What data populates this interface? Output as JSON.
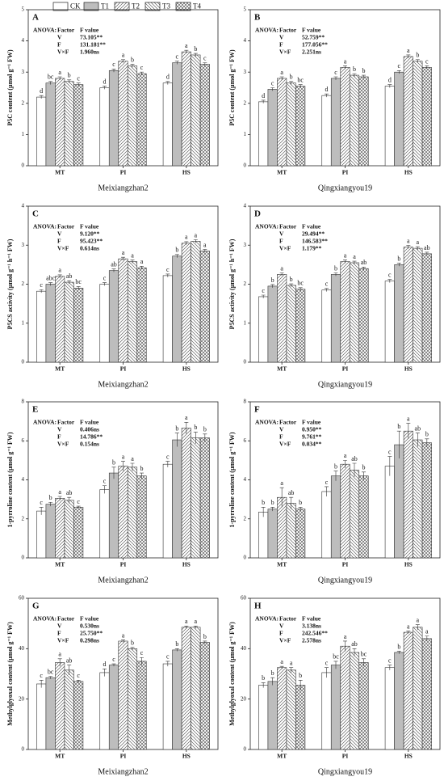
{
  "legend": [
    {
      "name": "CK",
      "fill": "#ffffff",
      "pattern": "none"
    },
    {
      "name": "T1",
      "fill": "#bdbdbd",
      "pattern": "none"
    },
    {
      "name": "T2",
      "fill": "#ffffff",
      "pattern": "diag"
    },
    {
      "name": "T3",
      "fill": "#ffffff",
      "pattern": "back"
    },
    {
      "name": "T4",
      "fill": "#ffffff",
      "pattern": "cross"
    }
  ],
  "chart_data": [
    {
      "type": "bar",
      "panel": "A",
      "ylabel": "P5C content (μmol g⁻¹ FW)",
      "xlabel": "Meixiangzhan2",
      "categories": [
        "MT",
        "PI",
        "HS"
      ],
      "ylim": [
        0,
        5
      ],
      "yticks": [
        0,
        1,
        2,
        3,
        4,
        5
      ],
      "anova": {
        "header": [
          "ANOVA:",
          "Factor",
          "F value"
        ],
        "rows": [
          [
            "V",
            "73.105**"
          ],
          [
            "F",
            "131.181**"
          ],
          [
            "V×F",
            "1.960ns"
          ]
        ]
      },
      "series": [
        {
          "values": [
            2.2,
            2.5,
            2.65
          ],
          "errors": [
            0.05,
            0.05,
            0.05
          ],
          "letters": [
            "d",
            "d",
            "d"
          ]
        },
        {
          "values": [
            2.65,
            3.05,
            3.3
          ],
          "errors": [
            0.05,
            0.05,
            0.05
          ],
          "letters": [
            "bc",
            "c",
            "c"
          ]
        },
        {
          "values": [
            2.8,
            3.35,
            3.65
          ],
          "errors": [
            0.05,
            0.05,
            0.05
          ],
          "letters": [
            "a",
            "a",
            "a"
          ]
        },
        {
          "values": [
            2.7,
            3.2,
            3.55
          ],
          "errors": [
            0.05,
            0.05,
            0.05
          ],
          "letters": [
            "b",
            "b",
            "b"
          ]
        },
        {
          "values": [
            2.6,
            2.95,
            3.25
          ],
          "errors": [
            0.05,
            0.05,
            0.05
          ],
          "letters": [
            "c",
            "c",
            "c"
          ]
        }
      ]
    },
    {
      "type": "bar",
      "panel": "B",
      "ylabel": "P5C content (μmol g⁻¹ FW)",
      "xlabel": "Qingxiangyou19",
      "categories": [
        "MT",
        "PI",
        "HS"
      ],
      "ylim": [
        0,
        5
      ],
      "yticks": [
        0,
        1,
        2,
        3,
        4,
        5
      ],
      "anova": {
        "header": [
          "ANOVA:",
          "Factor",
          "F value"
        ],
        "rows": [
          [
            "V",
            "52.759**"
          ],
          [
            "F",
            "177.056**"
          ],
          [
            "V×F",
            "2.251ns"
          ]
        ]
      },
      "series": [
        {
          "values": [
            2.05,
            2.25,
            2.55
          ],
          "errors": [
            0.05,
            0.05,
            0.05
          ],
          "letters": [
            "d",
            "d",
            "d"
          ]
        },
        {
          "values": [
            2.45,
            2.8,
            3.0
          ],
          "errors": [
            0.05,
            0.05,
            0.05
          ],
          "letters": [
            "c",
            "c",
            "c"
          ]
        },
        {
          "values": [
            2.8,
            3.15,
            3.5
          ],
          "errors": [
            0.05,
            0.05,
            0.05
          ],
          "letters": [
            "a",
            "a",
            "a"
          ]
        },
        {
          "values": [
            2.65,
            2.9,
            3.35
          ],
          "errors": [
            0.05,
            0.05,
            0.05
          ],
          "letters": [
            "b",
            "b",
            "b"
          ]
        },
        {
          "values": [
            2.55,
            2.85,
            3.15
          ],
          "errors": [
            0.05,
            0.05,
            0.05
          ],
          "letters": [
            "bc",
            "b",
            "c"
          ]
        }
      ]
    },
    {
      "type": "bar",
      "panel": "C",
      "ylabel": "P5CS activity (μmol g⁻¹ h⁻¹ FW)",
      "xlabel": "Meixiangzhan2",
      "categories": [
        "MT",
        "PI",
        "HS"
      ],
      "ylim": [
        0,
        4
      ],
      "yticks": [
        0,
        1,
        2,
        3,
        4
      ],
      "anova": {
        "header": [
          "ANOVA:",
          "Factor",
          "F value"
        ],
        "rows": [
          [
            "V",
            "9.120**"
          ],
          [
            "F",
            "95.423**"
          ],
          [
            "V×F",
            "0.614ns"
          ]
        ]
      },
      "series": [
        {
          "values": [
            1.82,
            2.0,
            2.22
          ],
          "errors": [
            0.04,
            0.04,
            0.04
          ],
          "letters": [
            "c",
            "c",
            "c"
          ]
        },
        {
          "values": [
            2.0,
            2.35,
            2.72
          ],
          "errors": [
            0.04,
            0.04,
            0.04
          ],
          "letters": [
            "abc",
            "ab",
            "b"
          ]
        },
        {
          "values": [
            2.2,
            2.65,
            3.05
          ],
          "errors": [
            0.04,
            0.04,
            0.04
          ],
          "letters": [
            "a",
            "a",
            "a"
          ]
        },
        {
          "values": [
            2.05,
            2.58,
            3.1
          ],
          "errors": [
            0.04,
            0.04,
            0.04
          ],
          "letters": [
            "ab",
            "a",
            "a"
          ]
        },
        {
          "values": [
            1.9,
            2.42,
            2.85
          ],
          "errors": [
            0.04,
            0.04,
            0.04
          ],
          "letters": [
            "bc",
            "a",
            "a"
          ]
        }
      ]
    },
    {
      "type": "bar",
      "panel": "D",
      "ylabel": "P5CS activity (μmol g⁻¹ h⁻¹ FW)",
      "xlabel": "Qingxiangyou19",
      "categories": [
        "MT",
        "PI",
        "HS"
      ],
      "ylim": [
        0,
        4
      ],
      "yticks": [
        0,
        1,
        2,
        3,
        4
      ],
      "anova": {
        "header": [
          "ANOVA:",
          "Factor",
          "F value"
        ],
        "rows": [
          [
            "V",
            "29.494**"
          ],
          [
            "F",
            "146.583**"
          ],
          [
            "V×F",
            "1.179**"
          ]
        ]
      },
      "series": [
        {
          "values": [
            1.68,
            1.85,
            2.08
          ],
          "errors": [
            0.04,
            0.04,
            0.04
          ],
          "letters": [
            "c",
            "c",
            "c"
          ]
        },
        {
          "values": [
            1.95,
            2.25,
            2.5
          ],
          "errors": [
            0.04,
            0.04,
            0.04
          ],
          "letters": [
            "b",
            "b",
            "b"
          ]
        },
        {
          "values": [
            2.25,
            2.58,
            2.95
          ],
          "errors": [
            0.04,
            0.04,
            0.04
          ],
          "letters": [
            "a",
            "a",
            "a"
          ]
        },
        {
          "values": [
            1.97,
            2.55,
            2.92
          ],
          "errors": [
            0.04,
            0.04,
            0.04
          ],
          "letters": [
            "b",
            "a",
            "a"
          ]
        },
        {
          "values": [
            1.87,
            2.4,
            2.78
          ],
          "errors": [
            0.04,
            0.04,
            0.04
          ],
          "letters": [
            "bc",
            "ab",
            "ab"
          ]
        }
      ]
    },
    {
      "type": "bar",
      "panel": "E",
      "ylabel": "1-pyrroline content (μmol g⁻¹ FW)",
      "xlabel": "Meixiangzhan2",
      "categories": [
        "MT",
        "PI",
        "HS"
      ],
      "ylim": [
        0,
        8
      ],
      "yticks": [
        0,
        2,
        4,
        6,
        8
      ],
      "anova": {
        "header": [
          "ANOVA:",
          "Factor",
          "F value"
        ],
        "rows": [
          [
            "V",
            "0.406ns"
          ],
          [
            "F",
            "14.786**"
          ],
          [
            "V×F",
            "0.154ns"
          ]
        ]
      },
      "series": [
        {
          "values": [
            2.4,
            3.5,
            4.8
          ],
          "errors": [
            0.2,
            0.2,
            0.15
          ],
          "letters": [
            "c",
            "c",
            "c"
          ]
        },
        {
          "values": [
            2.75,
            4.35,
            6.05
          ],
          "errors": [
            0.1,
            0.3,
            0.35
          ],
          "letters": [
            "b",
            "b",
            "b"
          ]
        },
        {
          "values": [
            3.05,
            4.7,
            6.65
          ],
          "errors": [
            0.1,
            0.25,
            0.3
          ],
          "letters": [
            "a",
            "a",
            "a"
          ]
        },
        {
          "values": [
            2.95,
            4.65,
            6.15
          ],
          "errors": [
            0.15,
            0.2,
            0.3
          ],
          "letters": [
            "ab",
            "a",
            "b"
          ]
        },
        {
          "values": [
            2.6,
            4.2,
            6.15
          ],
          "errors": [
            0.05,
            0.15,
            0.2
          ],
          "letters": [
            "c",
            "b",
            "b"
          ]
        }
      ]
    },
    {
      "type": "bar",
      "panel": "F",
      "ylabel": "1-pyrroline content (μmol g⁻¹ FW)",
      "xlabel": "Qingxiangyou19",
      "categories": [
        "MT",
        "PI",
        "HS"
      ],
      "ylim": [
        0,
        8
      ],
      "yticks": [
        0,
        2,
        4,
        6,
        8
      ],
      "anova": {
        "header": [
          "ANOVA:",
          "Factor",
          "F value"
        ],
        "rows": [
          [
            "V",
            "0.950**"
          ],
          [
            "F",
            "9.761**"
          ],
          [
            "V×F",
            "0.034**"
          ]
        ]
      },
      "series": [
        {
          "values": [
            2.35,
            3.4,
            4.7
          ],
          "errors": [
            0.25,
            0.25,
            0.5
          ],
          "letters": [
            "b",
            "c",
            "c"
          ]
        },
        {
          "values": [
            2.5,
            4.2,
            5.8
          ],
          "errors": [
            0.1,
            0.25,
            0.7
          ],
          "letters": [
            "b",
            "b",
            "b"
          ]
        },
        {
          "values": [
            3.1,
            4.8,
            6.5
          ],
          "errors": [
            0.5,
            0.2,
            0.4
          ],
          "letters": [
            "a",
            "a",
            "a"
          ]
        },
        {
          "values": [
            2.8,
            4.5,
            6.05
          ],
          "errors": [
            0.3,
            0.35,
            0.35
          ],
          "letters": [
            "ab",
            "ab",
            "ab"
          ]
        },
        {
          "values": [
            2.5,
            4.2,
            5.9
          ],
          "errors": [
            0.1,
            0.2,
            0.2
          ],
          "letters": [
            "b",
            "b",
            "b"
          ]
        }
      ]
    },
    {
      "type": "bar",
      "panel": "G",
      "ylabel": "Methylglyoxal content (μmol g⁻¹ FW)",
      "xlabel": "Meixiangzhan2",
      "categories": [
        "MT",
        "PI",
        "HS"
      ],
      "ylim": [
        0,
        60
      ],
      "yticks": [
        0,
        20,
        40,
        60
      ],
      "anova": {
        "header": [
          "ANOVA:",
          "Factor",
          "F value"
        ],
        "rows": [
          [
            "V",
            "0.530ns"
          ],
          [
            "F",
            "25.750**"
          ],
          [
            "V×F",
            "0.298ns"
          ]
        ]
      },
      "series": [
        {
          "values": [
            26,
            30.5,
            34
          ],
          "errors": [
            1.5,
            1.5,
            1
          ],
          "letters": [
            "c",
            "d",
            "c"
          ]
        },
        {
          "values": [
            28.5,
            33.5,
            39.5
          ],
          "errors": [
            0.5,
            0.5,
            0.5
          ],
          "letters": [
            "bc",
            "c",
            "b"
          ]
        },
        {
          "values": [
            34.5,
            43,
            48.5
          ],
          "errors": [
            1.5,
            0.5,
            0.5
          ],
          "letters": [
            "a",
            "a",
            "a"
          ]
        },
        {
          "values": [
            31.5,
            40,
            48.5
          ],
          "errors": [
            2,
            0.5,
            0.5
          ],
          "letters": [
            "ab",
            "b",
            "a"
          ]
        },
        {
          "values": [
            27,
            35,
            42.5
          ],
          "errors": [
            0.5,
            1.5,
            0.5
          ],
          "letters": [
            "c",
            "c",
            "b"
          ]
        }
      ]
    },
    {
      "type": "bar",
      "panel": "H",
      "ylabel": "Methylglyoxal content (μmol g⁻¹ FW)",
      "xlabel": "Qingxiangyou19",
      "categories": [
        "MT",
        "PI",
        "HS"
      ],
      "ylim": [
        0,
        60
      ],
      "yticks": [
        0,
        20,
        40,
        60
      ],
      "anova": {
        "header": [
          "ANOVA:",
          "Factor",
          "F value"
        ],
        "rows": [
          [
            "V",
            "3.138ns"
          ],
          [
            "F",
            "242.546**"
          ],
          [
            "V×F",
            "2.578ns"
          ]
        ]
      },
      "series": [
        {
          "values": [
            25.5,
            30.5,
            32.5
          ],
          "errors": [
            1,
            2,
            1
          ],
          "letters": [
            "b",
            "c",
            "c"
          ]
        },
        {
          "values": [
            27,
            33.5,
            38.5
          ],
          "errors": [
            1.5,
            1.5,
            0.5
          ],
          "letters": [
            "b",
            "bc",
            "b"
          ]
        },
        {
          "values": [
            32.5,
            41,
            46.5
          ],
          "errors": [
            0.5,
            2,
            0.5
          ],
          "letters": [
            "a",
            "a",
            "a"
          ]
        },
        {
          "values": [
            31.5,
            38.5,
            48.5
          ],
          "errors": [
            1,
            1.5,
            1
          ],
          "letters": [
            "a",
            "ab",
            "a"
          ]
        },
        {
          "values": [
            25.5,
            34.5,
            44
          ],
          "errors": [
            2,
            1.5,
            1
          ],
          "letters": [
            "b",
            "bc",
            "a"
          ]
        }
      ]
    }
  ]
}
